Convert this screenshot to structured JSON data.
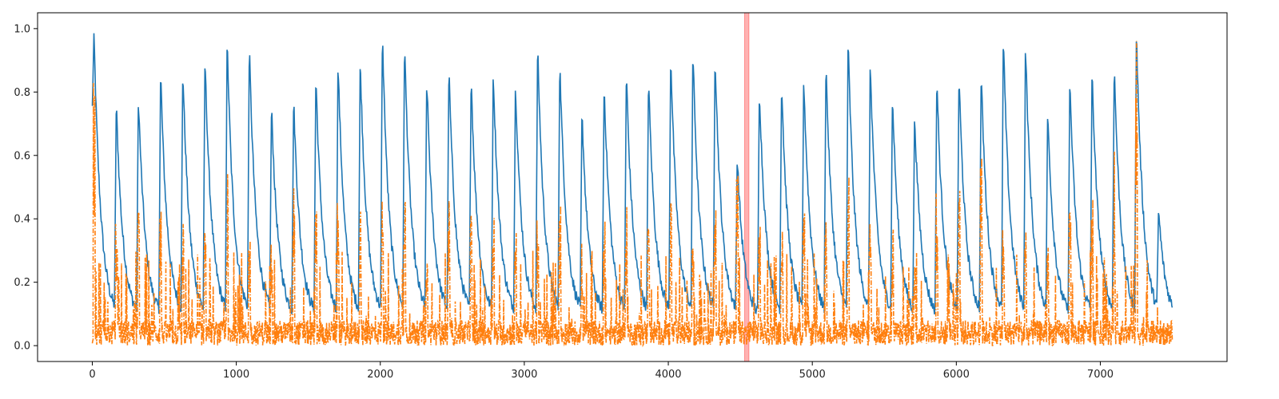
{
  "chart_data": {
    "type": "line",
    "title": "",
    "xlabel": "",
    "ylabel": "",
    "xlim": [
      -380,
      7880
    ],
    "ylim": [
      -0.05,
      1.05
    ],
    "x_ticks": [
      0,
      1000,
      2000,
      3000,
      4000,
      5000,
      6000,
      7000
    ],
    "x_tick_labels": [
      "0",
      "1000",
      "2000",
      "3000",
      "4000",
      "5000",
      "6000",
      "7000"
    ],
    "y_ticks": [
      0.0,
      0.2,
      0.4,
      0.6,
      0.8,
      1.0
    ],
    "y_tick_labels": [
      "0.0",
      "0.2",
      "0.4",
      "0.6",
      "0.8",
      "1.0"
    ],
    "grid": false,
    "legend": "none",
    "highlight_span": {
      "x0": 4530,
      "x1": 4560,
      "color": "#ff0000"
    },
    "series": [
      {
        "style": "solid",
        "color": "#1f77b4",
        "x_start": 0,
        "x_end": 7500,
        "cycle_peaks": [
          0.98,
          0.77,
          0.79,
          0.87,
          0.88,
          0.92,
          0.97,
          0.95,
          0.76,
          0.78,
          0.86,
          0.9,
          0.91,
          0.99,
          0.96,
          0.85,
          0.88,
          0.86,
          0.87,
          0.84,
          0.95,
          0.9,
          0.74,
          0.83,
          0.87,
          0.85,
          0.93,
          0.94,
          0.93,
          0.6,
          0.82,
          0.84,
          0.85,
          0.9,
          0.97,
          0.9,
          0.79,
          0.73,
          0.85,
          0.86,
          0.87,
          0.98,
          0.96,
          0.74,
          0.84,
          0.87,
          0.89,
          1.0,
          0.43
        ]
      },
      {
        "style": "dashdot",
        "color": "#ff7f0e",
        "x_start": 0,
        "x_end": 7500,
        "cycle_peaks": [
          0.88,
          0.45,
          0.43,
          0.43,
          0.42,
          0.43,
          0.55,
          0.38,
          0.35,
          0.56,
          0.46,
          0.45,
          0.46,
          0.47,
          0.49,
          0.26,
          0.48,
          0.46,
          0.47,
          0.45,
          0.43,
          0.46,
          0.33,
          0.44,
          0.44,
          0.47,
          0.45,
          0.42,
          0.43,
          0.56,
          0.43,
          0.4,
          0.42,
          0.48,
          0.56,
          0.53,
          0.38,
          0.34,
          0.55,
          0.52,
          0.6,
          0.46,
          0.45,
          0.38,
          0.43,
          0.5,
          0.62,
          1.0,
          0.05
        ]
      }
    ]
  }
}
